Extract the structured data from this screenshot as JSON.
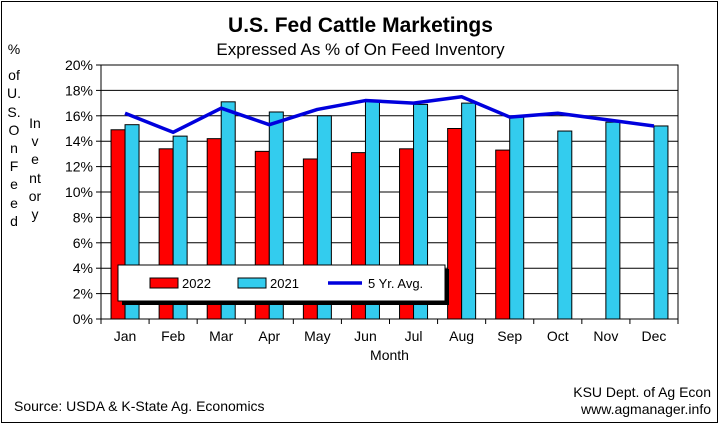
{
  "footer": {
    "source": "Source:  USDA & K-State Ag. Economics",
    "credit_line1": "KSU Dept. of Ag Econ",
    "credit_line2": "www.agmanager.info"
  },
  "chart_data": {
    "type": "bar",
    "title": "U.S. Fed Cattle Marketings",
    "subtitle": "Expressed As % of On Feed Inventory",
    "ylabel_unit": "%",
    "ylabel": "of U.S. Inventory On Feed",
    "ylabel_part1": "of U.S. On Feed",
    "ylabel_part2": "Inventory",
    "xlabel": "Month",
    "ylim": [
      0,
      20
    ],
    "yticks": [
      "0%",
      "2%",
      "4%",
      "6%",
      "8%",
      "10%",
      "12%",
      "14%",
      "16%",
      "18%",
      "20%"
    ],
    "categories": [
      "Jan",
      "Feb",
      "Mar",
      "Apr",
      "May",
      "Jun",
      "Jul",
      "Aug",
      "Sep",
      "Oct",
      "Nov",
      "Dec"
    ],
    "grid": "horizontal",
    "legend_placement": "inside-bottom-left",
    "series": [
      {
        "name": "2022",
        "kind": "bar",
        "color": "#ff0000",
        "values": [
          14.9,
          13.4,
          14.2,
          13.2,
          12.6,
          13.1,
          13.4,
          15.0,
          13.3,
          null,
          null,
          null
        ]
      },
      {
        "name": "2021",
        "kind": "bar",
        "color": "#33ccee",
        "values": [
          15.3,
          14.4,
          17.1,
          16.3,
          16.0,
          17.2,
          16.9,
          17.0,
          15.9,
          14.8,
          15.5,
          15.2
        ]
      },
      {
        "name": "5 Yr. Avg.",
        "kind": "line",
        "color": "#0000dd",
        "values": [
          16.2,
          14.7,
          16.6,
          15.3,
          16.5,
          17.2,
          17.0,
          17.5,
          15.9,
          16.2,
          15.7,
          15.2
        ]
      }
    ]
  }
}
